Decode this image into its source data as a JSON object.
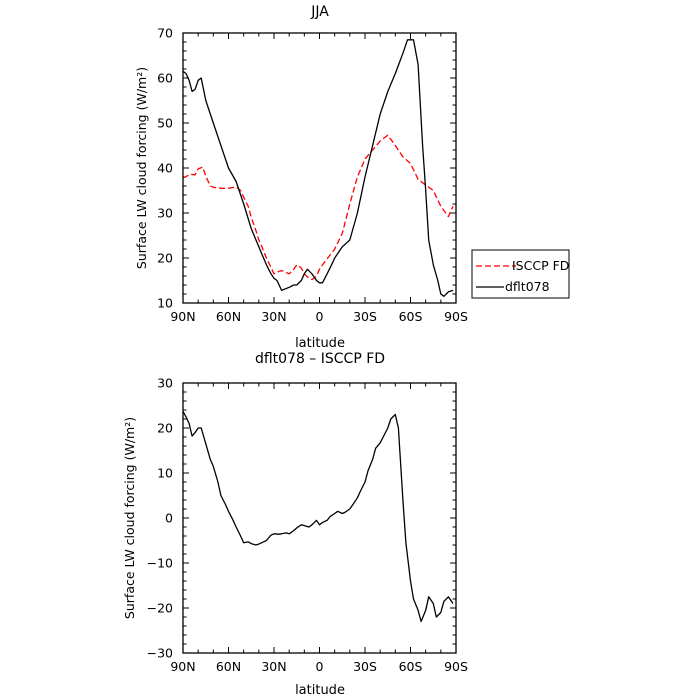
{
  "chart_data": [
    {
      "type": "line",
      "title": "JJA",
      "xlabel": "latitude",
      "ylabel": "Surface LW cloud forcing (W/m²)",
      "xlim": [
        -90,
        90
      ],
      "ylim": [
        10,
        70
      ],
      "xticks": [
        -90,
        -60,
        -30,
        0,
        30,
        60,
        90
      ],
      "xtick_labels": [
        "90N",
        "60N",
        "30N",
        "0",
        "30S",
        "60S",
        "90S"
      ],
      "yticks": [
        10,
        20,
        30,
        40,
        50,
        60,
        70
      ],
      "ytick_labels": [
        "10",
        "20",
        "30",
        "40",
        "50",
        "60",
        "70"
      ],
      "legend_position": "right",
      "series": [
        {
          "name": "ISCCP FD",
          "color": "#ff0000",
          "dash": "dashed",
          "x": [
            -90,
            -87,
            -85,
            -82,
            -80,
            -77,
            -75,
            -72,
            -70,
            -65,
            -60,
            -55,
            -52,
            -50,
            -47,
            -45,
            -42,
            -40,
            -38,
            -35,
            -30,
            -27,
            -25,
            -20,
            -17,
            -15,
            -12,
            -10,
            -8,
            -5,
            -2,
            0,
            2,
            5,
            10,
            15,
            20,
            25,
            30,
            35,
            40,
            45,
            50,
            55,
            60,
            65,
            70,
            75,
            80,
            85,
            88
          ],
          "y": [
            37.8,
            38.3,
            38.6,
            38.5,
            39.8,
            40.2,
            38.2,
            36.0,
            35.7,
            35.5,
            35.5,
            35.8,
            35.0,
            33.5,
            31.5,
            29.0,
            26.2,
            24.0,
            22.5,
            20.0,
            16.5,
            17.0,
            17.2,
            16.5,
            17.5,
            18.5,
            17.8,
            16.5,
            15.8,
            15.2,
            16.0,
            17.5,
            18.5,
            19.8,
            22.0,
            25.5,
            32.0,
            38.0,
            42.0,
            44.0,
            46.0,
            47.3,
            45.0,
            42.5,
            41.0,
            37.5,
            36.2,
            35.0,
            31.5,
            29.2,
            31.5
          ]
        },
        {
          "name": "dflt078",
          "color": "#000000",
          "dash": "solid",
          "x": [
            -90,
            -88,
            -86,
            -84,
            -82,
            -80,
            -78,
            -75,
            -70,
            -65,
            -60,
            -55,
            -50,
            -45,
            -40,
            -35,
            -32,
            -30,
            -28,
            -25,
            -20,
            -17,
            -15,
            -12,
            -10,
            -8,
            -5,
            -2,
            0,
            2,
            5,
            8,
            10,
            15,
            20,
            25,
            30,
            35,
            40,
            45,
            50,
            55,
            58,
            60,
            62,
            65,
            68,
            70,
            72,
            75,
            78,
            80,
            82,
            85,
            88
          ],
          "y": [
            61.5,
            61.0,
            59.5,
            57.0,
            57.5,
            59.5,
            60.0,
            55.0,
            50.0,
            45.0,
            40.0,
            37.0,
            32.0,
            26.5,
            22.5,
            18.5,
            16.5,
            15.5,
            15.0,
            12.8,
            13.5,
            14.0,
            14.0,
            15.0,
            16.5,
            17.5,
            16.5,
            15.0,
            14.5,
            14.5,
            16.5,
            18.5,
            20.0,
            22.5,
            24.0,
            30.0,
            38.0,
            45.0,
            52.0,
            57.0,
            61.0,
            65.5,
            68.5,
            68.5,
            68.5,
            63.0,
            45.0,
            35.0,
            24.0,
            18.5,
            15.0,
            12.0,
            11.5,
            12.5,
            12.8
          ]
        }
      ]
    },
    {
      "type": "line",
      "title": "dflt078 – ISCCP FD",
      "xlabel": "latitude",
      "ylabel": "Surface LW cloud forcing (W/m²)",
      "xlim": [
        -90,
        90
      ],
      "ylim": [
        -30,
        30
      ],
      "xticks": [
        -90,
        -60,
        -30,
        0,
        30,
        60,
        90
      ],
      "xtick_labels": [
        "90N",
        "60N",
        "30N",
        "0",
        "30S",
        "60S",
        "90S"
      ],
      "yticks": [
        -30,
        -20,
        -10,
        0,
        10,
        20,
        30
      ],
      "ytick_labels": [
        "−30",
        "−20",
        "−10",
        "0",
        "10",
        "20",
        "30"
      ],
      "series": [
        {
          "color": "#000000",
          "dash": "solid",
          "x": [
            -90,
            -88,
            -86,
            -84,
            -82,
            -80,
            -78,
            -75,
            -72,
            -70,
            -67,
            -65,
            -62,
            -60,
            -57,
            -55,
            -52,
            -50,
            -47,
            -45,
            -42,
            -40,
            -37,
            -35,
            -32,
            -30,
            -27,
            -25,
            -22,
            -20,
            -17,
            -15,
            -12,
            -10,
            -7,
            -5,
            -2,
            0,
            2,
            5,
            7,
            10,
            12,
            15,
            17,
            20,
            22,
            25,
            27,
            30,
            32,
            35,
            37,
            40,
            42,
            45,
            47,
            50,
            52,
            55,
            57,
            60,
            62,
            65,
            67,
            70,
            72,
            75,
            77,
            80,
            82,
            85,
            88
          ],
          "y": [
            23.7,
            22.5,
            21.0,
            18.2,
            19.0,
            20.0,
            20.0,
            16.5,
            13.0,
            11.5,
            8.0,
            5.0,
            3.0,
            1.5,
            -0.5,
            -2.0,
            -4.0,
            -5.5,
            -5.3,
            -5.7,
            -6.0,
            -5.8,
            -5.3,
            -5.0,
            -3.8,
            -3.5,
            -3.6,
            -3.5,
            -3.3,
            -3.5,
            -2.8,
            -2.2,
            -1.5,
            -1.7,
            -2.0,
            -1.5,
            -0.5,
            -1.5,
            -1.0,
            -0.5,
            0.3,
            1.0,
            1.5,
            1.0,
            1.3,
            2.0,
            3.0,
            4.5,
            6.0,
            8.0,
            10.5,
            13.0,
            15.5,
            16.7,
            18.0,
            20.0,
            22.0,
            23.0,
            20.0,
            4.0,
            -5.5,
            -14.0,
            -18.0,
            -20.5,
            -23.0,
            -20.5,
            -17.5,
            -19.0,
            -22.0,
            -21.0,
            -18.5,
            -17.5,
            -19.0
          ]
        }
      ]
    }
  ]
}
